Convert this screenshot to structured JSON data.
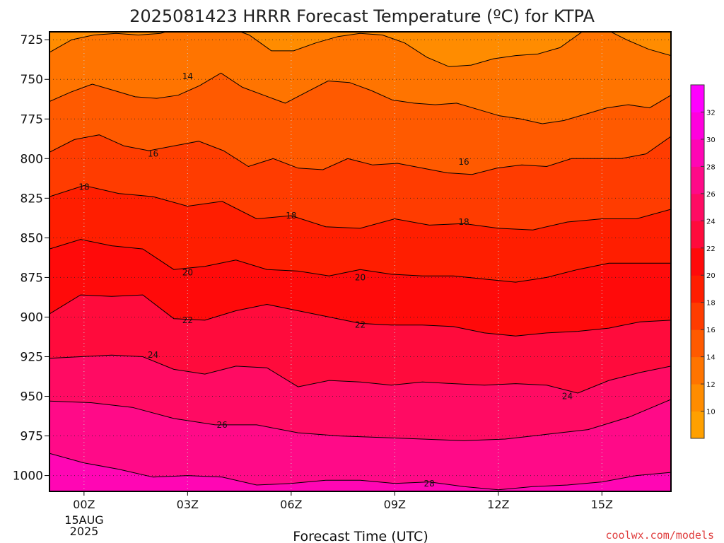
{
  "title": "2025081423 HRRR Forecast Temperature (ºC) for KTPA",
  "xlabel": "Forecast Time (UTC)",
  "credit": "coolwx.com/models",
  "date_lines": [
    "15AUG",
    "2025"
  ],
  "chart_data": {
    "type": "heatmap",
    "title": "2025081423 HRRR Forecast Temperature (ºC) for KTPA",
    "xlabel": "Forecast Time (UTC)",
    "ylabel": "",
    "x_ticks": [
      {
        "hour": 0,
        "label": "00Z"
      },
      {
        "hour": 3,
        "label": "03Z"
      },
      {
        "hour": 6,
        "label": "06Z"
      },
      {
        "hour": 9,
        "label": "09Z"
      },
      {
        "hour": 12,
        "label": "12Z"
      },
      {
        "hour": 15,
        "label": "15Z"
      }
    ],
    "xlim": [
      -1,
      17
    ],
    "y_ticks": [
      725,
      750,
      775,
      800,
      825,
      850,
      875,
      900,
      925,
      950,
      975,
      1000
    ],
    "ylim": [
      1010,
      720
    ],
    "grid": true,
    "colorbar": {
      "levels": [
        8,
        10,
        12,
        14,
        16,
        18,
        20,
        22,
        24,
        26,
        28,
        30,
        32,
        34
      ],
      "tick_labels": [
        10,
        12,
        14,
        16,
        18,
        20,
        22,
        24,
        26,
        28,
        30,
        32
      ],
      "colors": [
        "#ffa000",
        "#ff8c00",
        "#ff7400",
        "#ff5a00",
        "#ff3c00",
        "#ff1e00",
        "#ff0a0a",
        "#ff0b3c",
        "#ff0b63",
        "#ff0a88",
        "#ff06b4",
        "#ff00dd",
        "#ff00ff"
      ]
    },
    "series": [
      {
        "level": 12,
        "pressure": [
          733,
          725,
          722,
          721,
          722,
          721,
          717,
          716,
          717,
          722,
          732,
          732,
          727,
          723,
          721,
          722,
          727,
          736,
          742,
          741,
          737,
          735,
          734,
          730,
          720,
          718,
          725,
          731,
          735
        ]
      },
      {
        "level": 14,
        "pressure": [
          764,
          758,
          753,
          757,
          761,
          762,
          760,
          754,
          746,
          755,
          760,
          765,
          758,
          751,
          752,
          757,
          763,
          765,
          766,
          765,
          769,
          773,
          775,
          778,
          776,
          772,
          768,
          766,
          768,
          760
        ]
      },
      {
        "level": 16,
        "pressure": [
          796,
          788,
          785,
          792,
          795,
          792,
          789,
          795,
          805,
          800,
          806,
          807,
          800,
          804,
          803,
          806,
          809,
          810,
          806,
          804,
          805,
          800,
          800,
          800,
          797,
          786
        ]
      },
      {
        "level": 18,
        "pressure": [
          824,
          817,
          822,
          824,
          830,
          827,
          838,
          836,
          843,
          844,
          838,
          842,
          841,
          844,
          845,
          840,
          838,
          838,
          832
        ]
      },
      {
        "level": 20,
        "pressure": [
          857,
          851,
          855,
          857,
          870,
          868,
          864,
          870,
          871,
          874,
          870,
          873,
          874,
          874,
          876,
          878,
          875,
          870,
          866,
          866,
          866
        ]
      },
      {
        "level": 22,
        "pressure": [
          898,
          886,
          887,
          886,
          901,
          902,
          896,
          892,
          896,
          900,
          904,
          905,
          905,
          906,
          910,
          912,
          910,
          909,
          907,
          903,
          902
        ]
      },
      {
        "level": 24,
        "pressure": [
          926,
          925,
          924,
          925,
          933,
          936,
          931,
          932,
          944,
          940,
          941,
          943,
          941,
          942,
          943,
          942,
          943,
          948,
          940,
          935,
          931
        ]
      },
      {
        "level": 26,
        "pressure": [
          953,
          954,
          957,
          964,
          968,
          968,
          973,
          975,
          976,
          977,
          978,
          977,
          974,
          971,
          963,
          952
        ]
      },
      {
        "level": 28,
        "pressure": [
          986,
          992,
          996,
          1001,
          1000,
          1001,
          1006,
          1005,
          1003,
          1003,
          1005,
          1004,
          1007,
          1009,
          1007,
          1006,
          1004,
          1000,
          998
        ]
      }
    ],
    "contour_labels": [
      {
        "text": "14",
        "hour": 3.0,
        "p": 748
      },
      {
        "text": "16",
        "hour": 2.0,
        "p": 797
      },
      {
        "text": "16",
        "hour": 11.0,
        "p": 802
      },
      {
        "text": "18",
        "hour": 0.0,
        "p": 818
      },
      {
        "text": "18",
        "hour": 6.0,
        "p": 836
      },
      {
        "text": "18",
        "hour": 11.0,
        "p": 840
      },
      {
        "text": "20",
        "hour": 3.0,
        "p": 872
      },
      {
        "text": "20",
        "hour": 8.0,
        "p": 875
      },
      {
        "text": "22",
        "hour": 3.0,
        "p": 902
      },
      {
        "text": "22",
        "hour": 8.0,
        "p": 905
      },
      {
        "text": "24",
        "hour": 2.0,
        "p": 924
      },
      {
        "text": "24",
        "hour": 14.0,
        "p": 950
      },
      {
        "text": "26",
        "hour": 4.0,
        "p": 968
      },
      {
        "text": "28",
        "hour": 10.0,
        "p": 1005
      }
    ]
  }
}
